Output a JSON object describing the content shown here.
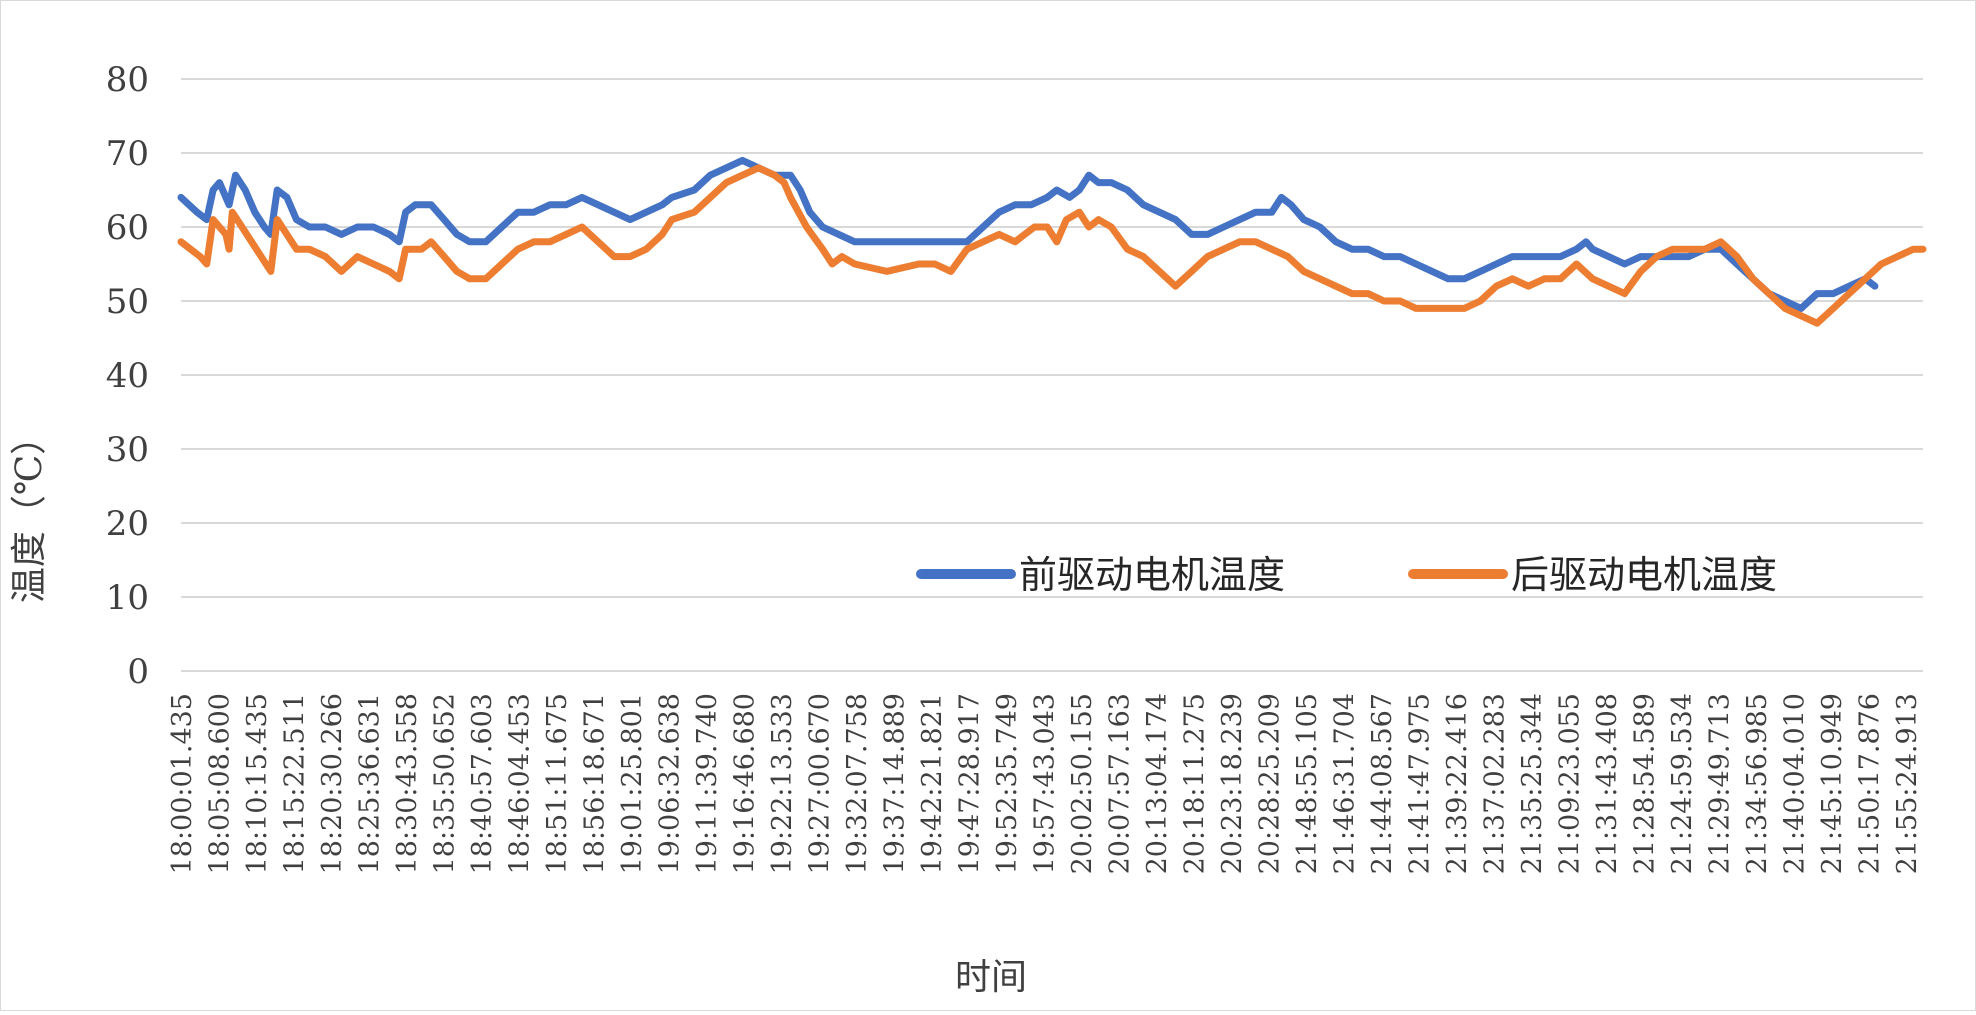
{
  "chart_data": {
    "type": "line",
    "title": "",
    "xlabel": "时间",
    "ylabel": "温度（℃）",
    "ylim": [
      0,
      80
    ],
    "yticks": [
      "0",
      "10",
      "20",
      "30",
      "40",
      "50",
      "60",
      "70",
      "80"
    ],
    "grid": true,
    "legend_position": "lower-right inside plot",
    "x_tick_labels": [
      "18:00:01.435",
      "18:05:08.600",
      "18:10:15.435",
      "18:15:22.511",
      "18:20:30.266",
      "18:25:36.631",
      "18:30:43.558",
      "18:35:50.652",
      "18:40:57.603",
      "18:46:04.453",
      "18:51:11.675",
      "18:56:18.671",
      "19:01:25.801",
      "19:06:32.638",
      "19:11:39.740",
      "19:16:46.680",
      "19:22:13.533",
      "19:27:00.670",
      "19:32:07.758",
      "19:37:14.889",
      "19:42:21.821",
      "19:47:28.917",
      "19:52:35.749",
      "19:57:43.043",
      "20:02:50.155",
      "20:07:57.163",
      "20:13:04.174",
      "20:18:11.275",
      "20:23:18.239",
      "20:28:25.209",
      "21:48:55.105",
      "21:46:31.704",
      "21:44:08.567",
      "21:41:47.975",
      "21:39:22.416",
      "21:37:02.283",
      "21:35:25.344",
      "21:09:23.055",
      "21:31:43.408",
      "21:28:54.589",
      "21:24:59.534",
      "21:29:49.713",
      "21:34:56.985",
      "21:40:04.010",
      "21:45:10.949",
      "21:50:17.876",
      "21:55:24.913"
    ],
    "series": [
      {
        "name": "前驱动电机温度",
        "color": "#4472C4",
        "values": [
          [
            0.0,
            64
          ],
          [
            0.5,
            62
          ],
          [
            0.8,
            61
          ],
          [
            1.0,
            65
          ],
          [
            1.2,
            66
          ],
          [
            1.5,
            63
          ],
          [
            1.7,
            67
          ],
          [
            2.0,
            65
          ],
          [
            2.3,
            62
          ],
          [
            2.6,
            60
          ],
          [
            2.8,
            59
          ],
          [
            3.0,
            65
          ],
          [
            3.3,
            64
          ],
          [
            3.6,
            61
          ],
          [
            4.0,
            60
          ],
          [
            4.5,
            60
          ],
          [
            5.0,
            59
          ],
          [
            5.5,
            60
          ],
          [
            6.0,
            60
          ],
          [
            6.5,
            59
          ],
          [
            6.8,
            58
          ],
          [
            7.0,
            62
          ],
          [
            7.3,
            63
          ],
          [
            7.8,
            63
          ],
          [
            8.2,
            61
          ],
          [
            8.6,
            59
          ],
          [
            9.0,
            58
          ],
          [
            9.5,
            58
          ],
          [
            10.0,
            60
          ],
          [
            10.5,
            62
          ],
          [
            11.0,
            62
          ],
          [
            11.5,
            63
          ],
          [
            12.0,
            63
          ],
          [
            12.5,
            64
          ],
          [
            13.0,
            63
          ],
          [
            13.5,
            62
          ],
          [
            14.0,
            61
          ],
          [
            14.5,
            62
          ],
          [
            15.0,
            63
          ],
          [
            15.3,
            64
          ],
          [
            16.0,
            65
          ],
          [
            16.5,
            67
          ],
          [
            17.0,
            68
          ],
          [
            17.5,
            69
          ],
          [
            18.0,
            68
          ],
          [
            18.5,
            67
          ],
          [
            19.0,
            67
          ],
          [
            19.3,
            65
          ],
          [
            19.6,
            62
          ],
          [
            20.0,
            60
          ],
          [
            20.5,
            59
          ],
          [
            21.0,
            58
          ],
          [
            22.0,
            58
          ],
          [
            23.0,
            58
          ],
          [
            24.0,
            58
          ],
          [
            24.5,
            58
          ],
          [
            25.0,
            60
          ],
          [
            25.5,
            62
          ],
          [
            26.0,
            63
          ],
          [
            26.5,
            63
          ],
          [
            27.0,
            64
          ],
          [
            27.3,
            65
          ],
          [
            27.7,
            64
          ],
          [
            28.0,
            65
          ],
          [
            28.3,
            67
          ],
          [
            28.6,
            66
          ],
          [
            29.0,
            66
          ],
          [
            29.5,
            65
          ],
          [
            30.0,
            63
          ],
          [
            30.5,
            62
          ],
          [
            31.0,
            61
          ],
          [
            31.5,
            59
          ],
          [
            32.0,
            59
          ],
          [
            32.5,
            60
          ],
          [
            33.0,
            61
          ],
          [
            33.5,
            62
          ],
          [
            34.0,
            62
          ],
          [
            34.3,
            64
          ],
          [
            34.6,
            63
          ],
          [
            35.0,
            61
          ],
          [
            35.5,
            60
          ],
          [
            36.0,
            58
          ],
          [
            36.5,
            57
          ],
          [
            37.0,
            57
          ],
          [
            37.5,
            56
          ],
          [
            38.0,
            56
          ],
          [
            38.5,
            55
          ],
          [
            39.0,
            54
          ],
          [
            39.5,
            53
          ],
          [
            40.0,
            53
          ],
          [
            40.5,
            54
          ],
          [
            41.0,
            55
          ],
          [
            41.5,
            56
          ],
          [
            42.0,
            56
          ],
          [
            42.5,
            56
          ],
          [
            43.0,
            56
          ],
          [
            43.5,
            57
          ],
          [
            43.8,
            58
          ],
          [
            44.0,
            57
          ],
          [
            44.5,
            56
          ],
          [
            45.0,
            55
          ],
          [
            45.5,
            56
          ],
          [
            46.0,
            56
          ],
          [
            46.5,
            56
          ],
          [
            47.0,
            56
          ],
          [
            47.5,
            57
          ],
          [
            48.0,
            57
          ],
          [
            48.5,
            55
          ],
          [
            49.0,
            53
          ],
          [
            49.5,
            51
          ],
          [
            50.0,
            50
          ],
          [
            50.5,
            49
          ],
          [
            51.0,
            51
          ],
          [
            51.5,
            51
          ],
          [
            52.0,
            52
          ],
          [
            52.5,
            53
          ],
          [
            52.8,
            52
          ]
        ]
      },
      {
        "name": "后驱动电机温度",
        "color": "#ED7D31",
        "values": [
          [
            0.0,
            58
          ],
          [
            0.3,
            57
          ],
          [
            0.6,
            56
          ],
          [
            0.8,
            55
          ],
          [
            1.0,
            61
          ],
          [
            1.2,
            60
          ],
          [
            1.4,
            59
          ],
          [
            1.5,
            57
          ],
          [
            1.6,
            62
          ],
          [
            1.9,
            60
          ],
          [
            2.2,
            58
          ],
          [
            2.5,
            56
          ],
          [
            2.8,
            54
          ],
          [
            3.0,
            61
          ],
          [
            3.3,
            59
          ],
          [
            3.6,
            57
          ],
          [
            4.0,
            57
          ],
          [
            4.5,
            56
          ],
          [
            5.0,
            54
          ],
          [
            5.5,
            56
          ],
          [
            6.0,
            55
          ],
          [
            6.5,
            54
          ],
          [
            6.8,
            53
          ],
          [
            7.0,
            57
          ],
          [
            7.5,
            57
          ],
          [
            7.8,
            58
          ],
          [
            8.2,
            56
          ],
          [
            8.6,
            54
          ],
          [
            9.0,
            53
          ],
          [
            9.5,
            53
          ],
          [
            10.0,
            55
          ],
          [
            10.5,
            57
          ],
          [
            11.0,
            58
          ],
          [
            11.5,
            58
          ],
          [
            12.0,
            59
          ],
          [
            12.5,
            60
          ],
          [
            13.0,
            58
          ],
          [
            13.5,
            56
          ],
          [
            14.0,
            56
          ],
          [
            14.5,
            57
          ],
          [
            15.0,
            59
          ],
          [
            15.3,
            61
          ],
          [
            16.0,
            62
          ],
          [
            16.5,
            64
          ],
          [
            17.0,
            66
          ],
          [
            17.5,
            67
          ],
          [
            18.0,
            68
          ],
          [
            18.5,
            67
          ],
          [
            18.8,
            66
          ],
          [
            19.0,
            64
          ],
          [
            19.5,
            60
          ],
          [
            20.0,
            57
          ],
          [
            20.3,
            55
          ],
          [
            20.6,
            56
          ],
          [
            21.0,
            55
          ],
          [
            22.0,
            54
          ],
          [
            23.0,
            55
          ],
          [
            23.5,
            55
          ],
          [
            24.0,
            54
          ],
          [
            24.5,
            57
          ],
          [
            25.0,
            58
          ],
          [
            25.5,
            59
          ],
          [
            26.0,
            58
          ],
          [
            26.3,
            59
          ],
          [
            26.6,
            60
          ],
          [
            27.0,
            60
          ],
          [
            27.3,
            58
          ],
          [
            27.6,
            61
          ],
          [
            28.0,
            62
          ],
          [
            28.3,
            60
          ],
          [
            28.6,
            61
          ],
          [
            29.0,
            60
          ],
          [
            29.5,
            57
          ],
          [
            30.0,
            56
          ],
          [
            30.5,
            54
          ],
          [
            31.0,
            52
          ],
          [
            31.5,
            54
          ],
          [
            32.0,
            56
          ],
          [
            32.5,
            57
          ],
          [
            33.0,
            58
          ],
          [
            33.5,
            58
          ],
          [
            34.0,
            57
          ],
          [
            34.5,
            56
          ],
          [
            35.0,
            54
          ],
          [
            35.5,
            53
          ],
          [
            36.0,
            52
          ],
          [
            36.5,
            51
          ],
          [
            37.0,
            51
          ],
          [
            37.5,
            50
          ],
          [
            38.0,
            50
          ],
          [
            38.5,
            49
          ],
          [
            39.0,
            49
          ],
          [
            39.5,
            49
          ],
          [
            40.0,
            49
          ],
          [
            40.5,
            50
          ],
          [
            41.0,
            52
          ],
          [
            41.5,
            53
          ],
          [
            42.0,
            52
          ],
          [
            42.5,
            53
          ],
          [
            43.0,
            53
          ],
          [
            43.5,
            55
          ],
          [
            44.0,
            53
          ],
          [
            44.5,
            52
          ],
          [
            45.0,
            51
          ],
          [
            45.5,
            54
          ],
          [
            46.0,
            56
          ],
          [
            46.5,
            57
          ],
          [
            47.0,
            57
          ],
          [
            47.5,
            57
          ],
          [
            48.0,
            58
          ],
          [
            48.5,
            56
          ],
          [
            49.0,
            53
          ],
          [
            49.5,
            51
          ],
          [
            50.0,
            49
          ],
          [
            50.5,
            48
          ],
          [
            51.0,
            47
          ],
          [
            51.5,
            49
          ],
          [
            52.0,
            51
          ],
          [
            52.5,
            53
          ],
          [
            53.0,
            55
          ],
          [
            53.5,
            56
          ],
          [
            54.0,
            57
          ],
          [
            54.3,
            57
          ]
        ]
      }
    ]
  }
}
